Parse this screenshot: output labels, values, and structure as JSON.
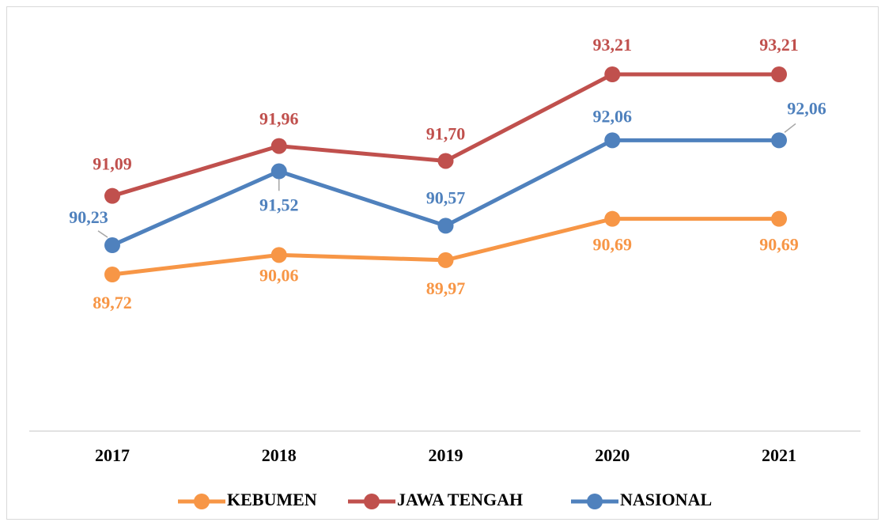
{
  "chart_data": {
    "type": "line",
    "categories": [
      "2017",
      "2018",
      "2019",
      "2020",
      "2021"
    ],
    "series": [
      {
        "name": "KEBUMEN",
        "color": "#f79646",
        "values": [
          89.72,
          90.06,
          89.97,
          90.69,
          90.69
        ],
        "value_labels": [
          "89,72",
          "90,06",
          "89,97",
          "90,69",
          "90,69"
        ]
      },
      {
        "name": "JAWA TENGAH",
        "color": "#c0504d",
        "values": [
          91.09,
          91.96,
          91.7,
          93.21,
          93.21
        ],
        "value_labels": [
          "91,09",
          "91,96",
          "91,70",
          "93,21",
          "93,21"
        ]
      },
      {
        "name": "NASIONAL",
        "color": "#4f81bd",
        "values": [
          90.23,
          91.52,
          90.57,
          92.06,
          92.06
        ],
        "value_labels": [
          "90,23",
          "91,52",
          "90,57",
          "92,06",
          "92,06"
        ]
      }
    ],
    "grid": false,
    "legend": "bottom"
  }
}
